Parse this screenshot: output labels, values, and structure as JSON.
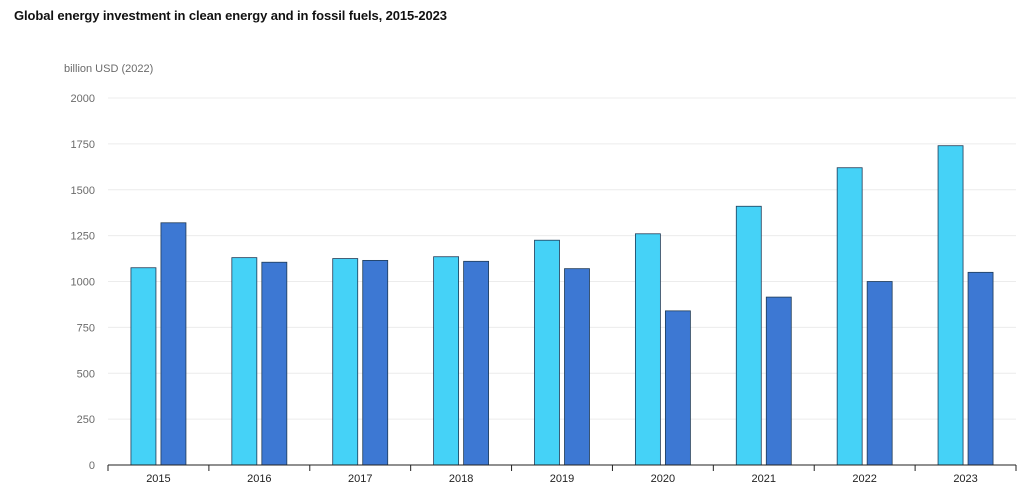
{
  "chart_data": {
    "type": "bar",
    "title": "Global energy investment in clean energy and in fossil fuels, 2015-2023",
    "ylabel": "billion USD (2022)",
    "xlabel": "",
    "categories": [
      "2015",
      "2016",
      "2017",
      "2018",
      "2019",
      "2020",
      "2021",
      "2022",
      "2023"
    ],
    "series": [
      {
        "color": "#45d2f7",
        "values": [
          1075,
          1130,
          1125,
          1135,
          1225,
          1260,
          1410,
          1620,
          1740
        ]
      },
      {
        "color": "#3d78d3",
        "values": [
          1320,
          1105,
          1115,
          1110,
          1070,
          840,
          915,
          1000,
          1050
        ]
      }
    ],
    "ylim": [
      0,
      2000
    ],
    "yticks": [
      "0",
      "250",
      "500",
      "750",
      "1000",
      "1250",
      "1500",
      "1750",
      "2000"
    ],
    "grid": true,
    "legend": "none"
  }
}
